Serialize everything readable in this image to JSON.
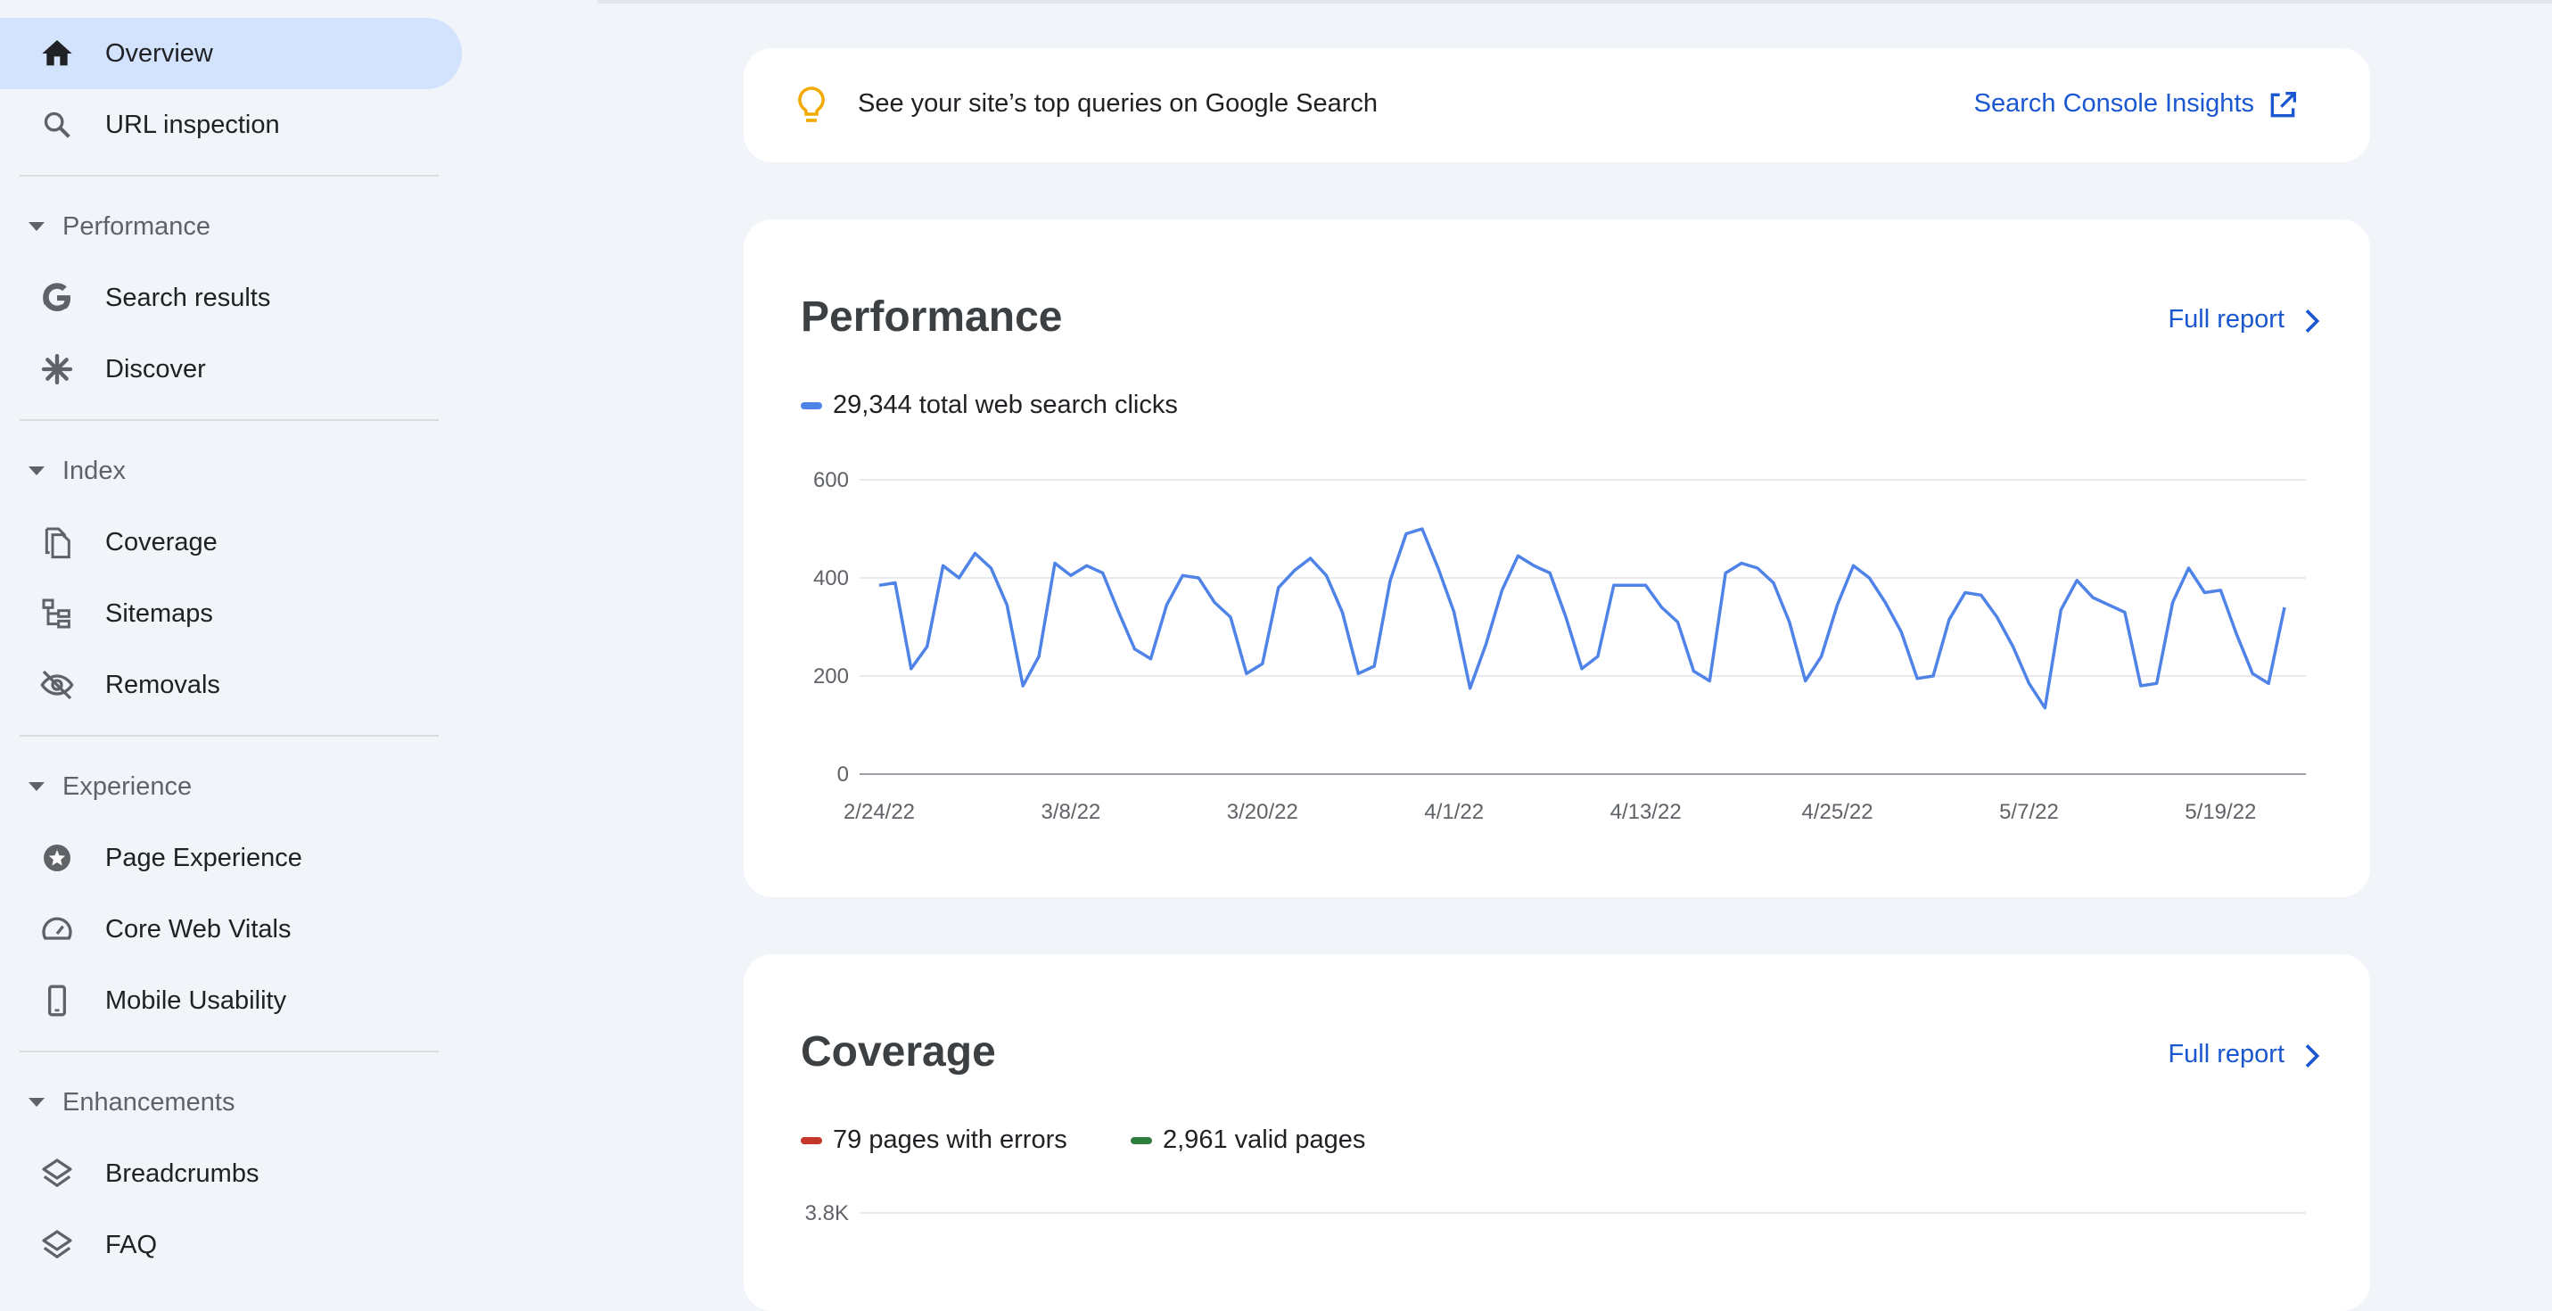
{
  "sidebar": {
    "overview": "Overview",
    "url_inspection": "URL inspection",
    "sections": {
      "performance": {
        "label": "Performance",
        "items": {
          "search_results": "Search results",
          "discover": "Discover"
        }
      },
      "index": {
        "label": "Index",
        "items": {
          "coverage": "Coverage",
          "sitemaps": "Sitemaps",
          "removals": "Removals"
        }
      },
      "experience": {
        "label": "Experience",
        "items": {
          "page_experience": "Page Experience",
          "core_web_vitals": "Core Web Vitals",
          "mobile_usability": "Mobile Usability"
        }
      },
      "enhancements": {
        "label": "Enhancements",
        "items": {
          "breadcrumbs": "Breadcrumbs",
          "faq": "FAQ"
        }
      }
    }
  },
  "insights": {
    "text": "See your site’s top queries on Google Search",
    "link": "Search Console Insights"
  },
  "performance": {
    "title": "Performance",
    "full_report": "Full report",
    "legend": "29,344 total web search clicks"
  },
  "coverage": {
    "title": "Coverage",
    "full_report": "Full report",
    "legend_errors": "79 pages with errors",
    "legend_valid": "2,961 valid pages",
    "y_top_tick": "3.8K"
  },
  "colors": {
    "accent_blue": "#1a57d0",
    "series_blue": "#4f83e8",
    "errors_red": "#c5362b",
    "valid_green": "#2e7d3c",
    "active_nav": "#d3e3fd",
    "bulb_yellow": "#f2a900"
  },
  "icons": {
    "overview": "home-icon",
    "url_inspection": "search-icon",
    "search_results": "google-g-icon",
    "discover": "asterisk-icon",
    "coverage": "copy-pages-icon",
    "sitemaps": "sitemap-icon",
    "removals": "eye-off-icon",
    "page_experience": "badge-icon",
    "core_web_vitals": "speedometer-icon",
    "mobile_usability": "phone-icon",
    "breadcrumbs": "layers-icon",
    "faq": "layers-icon",
    "insights": "lightbulb-icon",
    "external": "open-in-new-icon",
    "full_report": "chevron-right-icon"
  },
  "chart_data": {
    "type": "line",
    "title": "Performance",
    "xlabel": "",
    "ylabel": "",
    "ylim": [
      0,
      600
    ],
    "yticks": [
      "0",
      "200",
      "400",
      "600"
    ],
    "x_tick_labels": [
      "2/24/22",
      "3/8/22",
      "3/20/22",
      "4/1/22",
      "4/13/22",
      "4/25/22",
      "5/7/22",
      "5/19/22"
    ],
    "x_start": "2/24/22",
    "x_end": "5/27/22",
    "grid": true,
    "series": [
      {
        "name": "29,344 total web search clicks",
        "values": [
          385,
          390,
          215,
          260,
          425,
          400,
          450,
          420,
          345,
          180,
          240,
          430,
          405,
          425,
          410,
          330,
          255,
          235,
          345,
          405,
          400,
          350,
          320,
          205,
          225,
          380,
          415,
          440,
          405,
          330,
          205,
          220,
          395,
          490,
          500,
          420,
          330,
          175,
          265,
          375,
          445,
          425,
          410,
          320,
          215,
          240,
          385,
          385,
          385,
          340,
          310,
          210,
          190,
          410,
          430,
          420,
          390,
          310,
          190,
          240,
          345,
          425,
          400,
          350,
          290,
          195,
          200,
          315,
          370,
          365,
          320,
          260,
          185,
          135,
          335,
          395,
          360,
          345,
          330,
          180,
          185,
          350,
          420,
          370,
          375,
          285,
          205,
          185,
          340
        ]
      }
    ]
  }
}
